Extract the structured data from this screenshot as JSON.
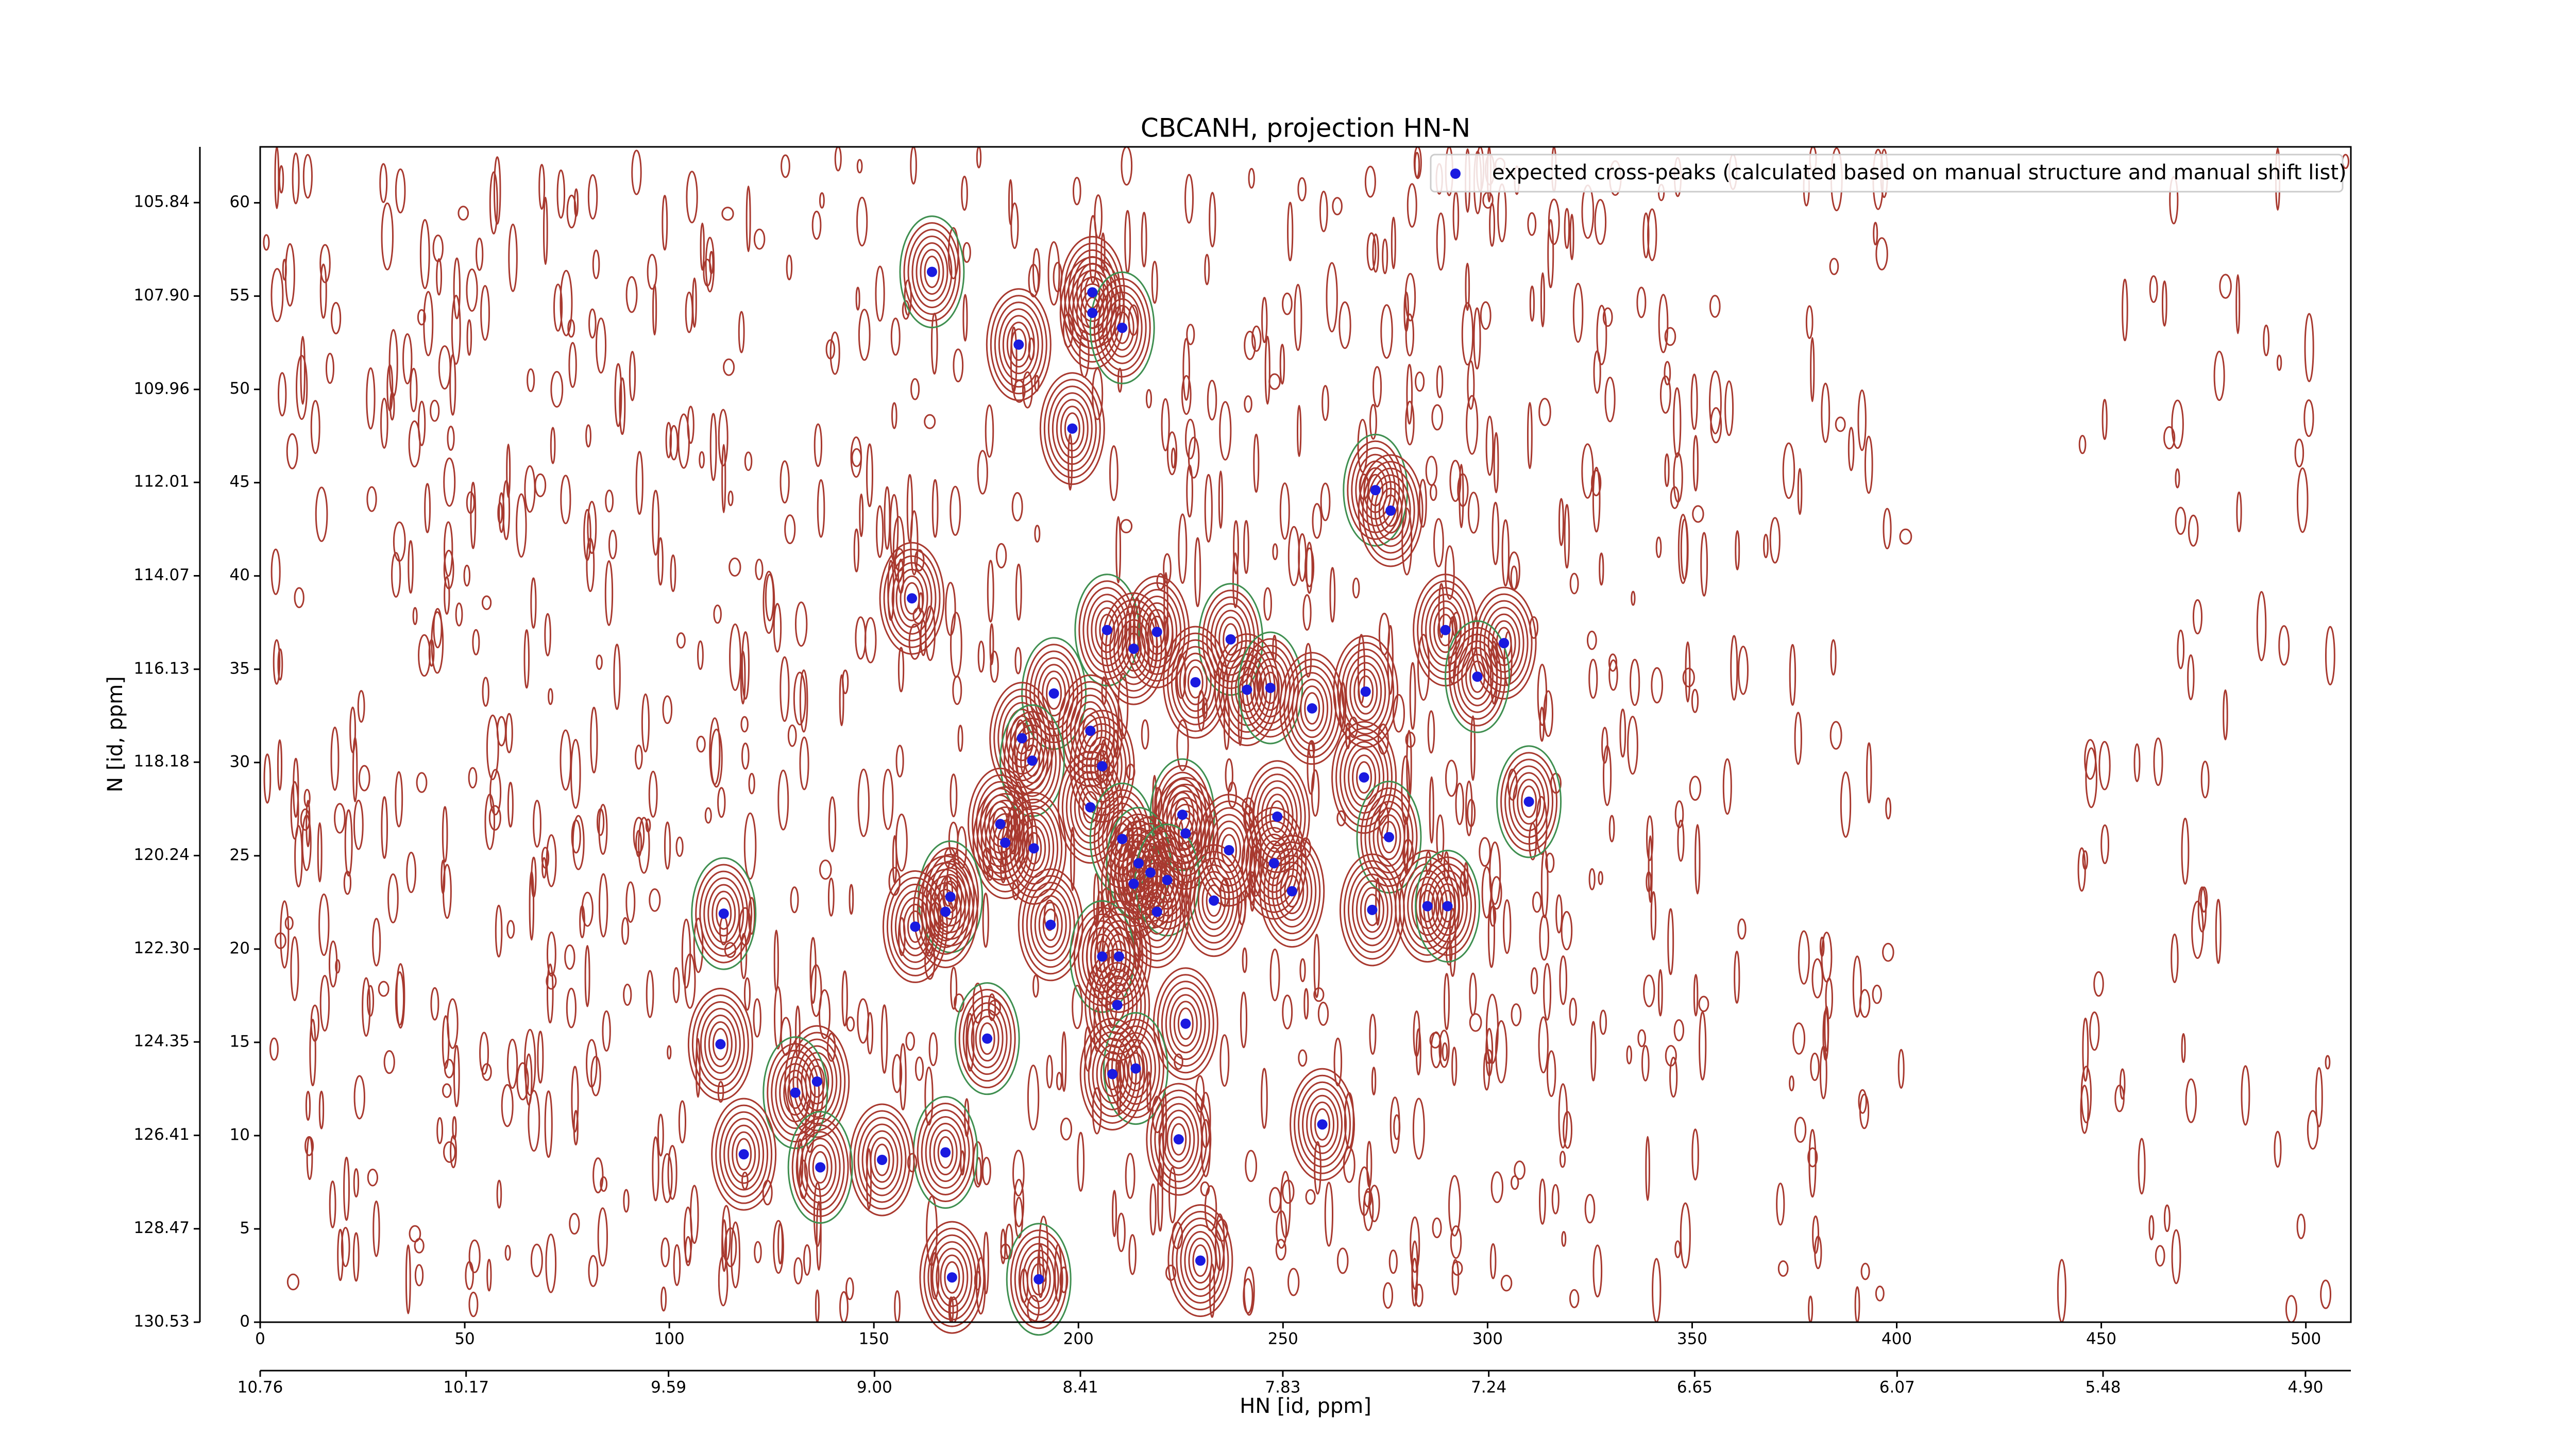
{
  "chart_data": {
    "type": "scatter",
    "title": "CBCANH, projection HN-N",
    "x_label": "HN [id, ppm]",
    "y_label": "N [id, ppm]",
    "legend": "upper right",
    "xlim": [
      0,
      511
    ],
    "ylim": [
      0,
      63
    ],
    "xticks": [
      0,
      50,
      100,
      150,
      200,
      250,
      300,
      350,
      400,
      450,
      500
    ],
    "yticks": [
      0,
      5,
      10,
      15,
      20,
      25,
      30,
      35,
      40,
      45,
      50,
      55,
      60
    ],
    "x2lim": [
      10.76,
      4.77
    ],
    "x2ticks": [
      10.76,
      10.17,
      9.59,
      {
        "value": 9.0,
        "label": "9.00"
      },
      8.41,
      7.83,
      7.24,
      6.65,
      6.07,
      5.48,
      {
        "value": 4.9,
        "label": "4.90"
      }
    ],
    "y2lim": [
      130.53,
      104.61
    ],
    "y2ticks": [
      105.84,
      {
        "value": 107.9,
        "label": "107.90"
      },
      109.96,
      112.01,
      114.07,
      116.13,
      118.18,
      120.24,
      {
        "value": 122.3,
        "label": "122.30"
      },
      124.35,
      126.41,
      128.47,
      130.53
    ],
    "series": [
      {
        "name": "expected cross-peaks (calculated based on manual structure and manual shift list)",
        "color": "#1a1ae0",
        "x": [
          164.2,
          203.4,
          203.4,
          210.7,
          185.4,
          198.5,
          272.6,
          276.3,
          159.3,
          207.0,
          213.5,
          219.2,
          237.2,
          289.7,
          304.0,
          297.5,
          228.6,
          241.2,
          246.9,
          257.1,
          270.2,
          194.0,
          186.2,
          202.9,
          188.7,
          205.8,
          269.8,
          310.1,
          202.9,
          248.6,
          225.4,
          180.9,
          226.2,
          210.7,
          182.1,
          189.1,
          275.9,
          236.8,
          247.8,
          214.7,
          217.6,
          213.5,
          221.7,
          252.2,
          233.1,
          168.7,
          219.2,
          167.5,
          113.3,
          271.8,
          285.3,
          290.2,
          160.1,
          193.2,
          205.8,
          209.9,
          209.5,
          177.7,
          112.5,
          226.2,
          214.0,
          208.3,
          136.1,
          130.8,
          259.6,
          224.5,
          167.5,
          118.2,
          152.0,
          136.9,
          229.8,
          169.1,
          190.3
        ],
        "values": [
          56.3,
          55.2,
          54.1,
          53.3,
          52.4,
          47.9,
          44.6,
          43.5,
          38.8,
          37.1,
          36.1,
          37.0,
          36.6,
          37.1,
          36.4,
          34.6,
          34.3,
          33.9,
          34.0,
          32.9,
          33.8,
          33.7,
          31.3,
          31.7,
          30.1,
          29.8,
          29.2,
          27.9,
          27.6,
          27.1,
          27.2,
          26.7,
          26.2,
          25.9,
          25.7,
          25.4,
          26.0,
          25.3,
          24.6,
          24.6,
          24.1,
          23.5,
          23.7,
          23.1,
          22.6,
          22.8,
          22.0,
          22.0,
          21.9,
          22.1,
          22.3,
          22.3,
          21.2,
          21.3,
          19.6,
          19.6,
          17.0,
          15.2,
          14.9,
          16.0,
          13.6,
          13.3,
          12.9,
          12.3,
          10.6,
          9.8,
          9.1,
          9.0,
          8.7,
          8.3,
          3.3,
          2.4,
          2.3
        ]
      }
    ]
  }
}
